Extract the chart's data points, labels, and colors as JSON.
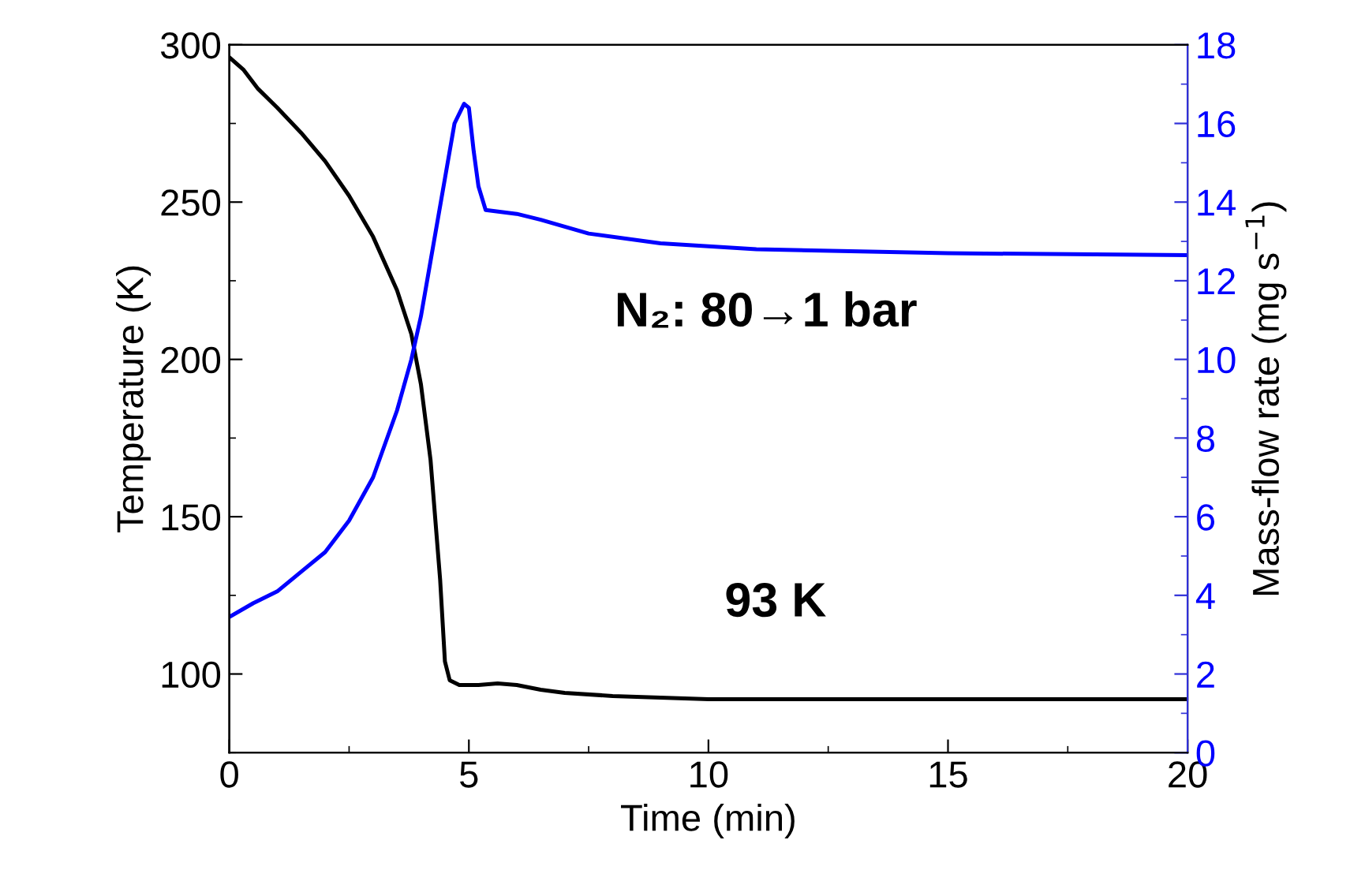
{
  "chart_data": {
    "type": "line",
    "xlabel": "Time (min)",
    "ylabel": "Temperature (K)",
    "y2label": "Mass-flow rate (mg s$^{−1}$)",
    "xlim": [
      0,
      20
    ],
    "xticks": [
      0,
      5,
      10,
      15,
      20
    ],
    "ylim": [
      75,
      300
    ],
    "yticks": [
      100,
      150,
      200,
      250,
      300
    ],
    "y2lim": [
      0,
      18
    ],
    "y2ticks": [
      0,
      2,
      4,
      6,
      8,
      10,
      12,
      14,
      16,
      18
    ],
    "grid": false,
    "marker": "none",
    "line_style": "solid",
    "annotations": [
      "N₂: 80→1 bar",
      "93 K"
    ],
    "series": [
      {
        "color": "#000000",
        "x": [
          0,
          0.3,
          0.6,
          1,
          1.5,
          2,
          2.5,
          3,
          3.5,
          3.8,
          4.0,
          4.2,
          4.4,
          4.5,
          4.6,
          4.8,
          5.2,
          5.6,
          6.0,
          6.5,
          7,
          8,
          9,
          10,
          12,
          15,
          20
        ],
        "values": [
          296,
          292,
          286,
          280,
          272,
          263,
          252,
          239,
          222,
          208,
          192,
          168,
          130,
          104,
          98,
          96.5,
          96.5,
          97,
          96.5,
          95,
          94,
          93,
          92.5,
          92,
          92,
          92,
          92
        ]
      },
      {
        "color": "#0000ff",
        "axis": "y2",
        "x": [
          0,
          0.5,
          1,
          1.5,
          2,
          2.5,
          3,
          3.5,
          3.8,
          4,
          4.2,
          4.5,
          4.7,
          4.9,
          5.0,
          5.1,
          5.2,
          5.35,
          6,
          6.5,
          7.5,
          9,
          11,
          15,
          20
        ],
        "values": [
          3.45,
          3.8,
          4.1,
          4.6,
          5.1,
          5.9,
          7.0,
          8.7,
          10.0,
          11.1,
          12.5,
          14.6,
          16.0,
          16.5,
          16.4,
          15.3,
          14.4,
          13.8,
          13.7,
          13.55,
          13.2,
          12.95,
          12.8,
          12.7,
          12.65
        ]
      }
    ]
  }
}
